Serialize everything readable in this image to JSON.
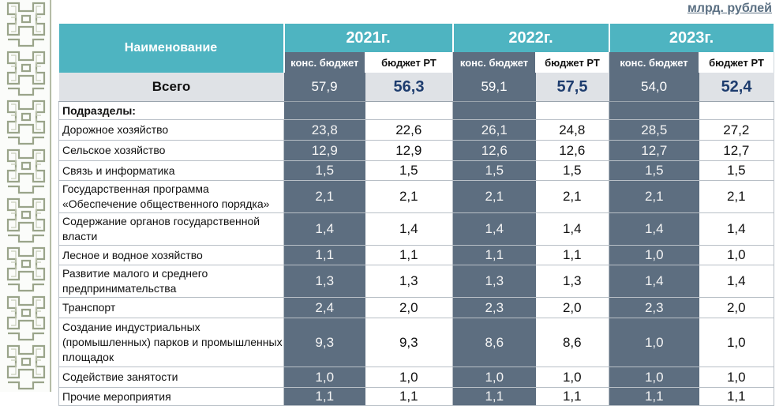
{
  "unit_label": "млрд. рублей",
  "header": {
    "name_col": "Наименование",
    "years": [
      "2021г.",
      "2022г.",
      "2023г."
    ],
    "sub_cons": "конс. бюджет",
    "sub_rt": "бюджет РТ"
  },
  "total": {
    "label": "Всего",
    "values": [
      "57,9",
      "56,3",
      "59,1",
      "57,5",
      "54,0",
      "52,4"
    ]
  },
  "section_label": "Подразделы:",
  "rows": [
    {
      "label": "Дорожное хозяйство",
      "values": [
        "23,8",
        "22,6",
        "26,1",
        "24,8",
        "28,5",
        "27,2"
      ]
    },
    {
      "label": "Сельское хозяйство",
      "values": [
        "12,9",
        "12,9",
        "12,6",
        "12,6",
        "12,7",
        "12,7"
      ]
    },
    {
      "label": "Связь и информатика",
      "values": [
        "1,5",
        "1,5",
        "1,5",
        "1,5",
        "1,5",
        "1,5"
      ]
    },
    {
      "label": "Государственная программа «Обеспечение общественного порядка»",
      "values": [
        "2,1",
        "2,1",
        "2,1",
        "2,1",
        "2,1",
        "2,1"
      ]
    },
    {
      "label": "Содержание органов государственной власти",
      "values": [
        "1,4",
        "1,4",
        "1,4",
        "1,4",
        "1,4",
        "1,4"
      ]
    },
    {
      "label": "Лесное и водное хозяйство",
      "values": [
        "1,1",
        "1,1",
        "1,1",
        "1,1",
        "1,0",
        "1,0"
      ]
    },
    {
      "label": "Развитие малого и среднего предпринимательства",
      "values": [
        "1,3",
        "1,3",
        "1,3",
        "1,3",
        "1,4",
        "1,4"
      ]
    },
    {
      "label": "Транспорт",
      "values": [
        "2,4",
        "2,0",
        "2,3",
        "2,0",
        "2,3",
        "2,0"
      ]
    },
    {
      "label": "Создание индустриальных (промышленных) парков и промышленных площадок",
      "values": [
        "9,3",
        "9,3",
        "8,6",
        "8,6",
        "1,0",
        "1,0"
      ]
    },
    {
      "label": "Содействие занятости",
      "values": [
        "1,0",
        "1,0",
        "1,0",
        "1,0",
        "1,0",
        "1,0"
      ]
    },
    {
      "label": "Прочие мероприятия",
      "values": [
        "1,1",
        "1,1",
        "1,1",
        "1,1",
        "1,1",
        "1,1"
      ]
    }
  ],
  "colors": {
    "header_teal": "#4eb4c1",
    "cons_column": "#5d6e80",
    "total_band": "#dfe2e6",
    "rt_total_text": "#1d3c6e",
    "unit_text": "#5a6f82"
  }
}
